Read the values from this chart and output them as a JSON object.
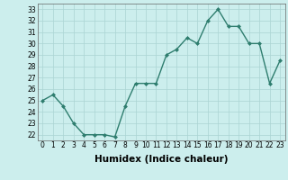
{
  "xlabel": "Humidex (Indice chaleur)",
  "x": [
    0,
    1,
    2,
    3,
    4,
    5,
    6,
    7,
    8,
    9,
    10,
    11,
    12,
    13,
    14,
    15,
    16,
    17,
    18,
    19,
    20,
    21,
    22,
    23
  ],
  "y": [
    25.0,
    25.5,
    24.5,
    23.0,
    22.0,
    22.0,
    22.0,
    21.8,
    24.5,
    26.5,
    26.5,
    26.5,
    29.0,
    29.5,
    30.5,
    30.0,
    32.0,
    33.0,
    31.5,
    31.5,
    30.0,
    30.0,
    26.5,
    28.5
  ],
  "line_color": "#2e7d6e",
  "marker": "D",
  "marker_size": 2.0,
  "background_color": "#cceeed",
  "grid_color": "#aad4d3",
  "ylim_min": 21.5,
  "ylim_max": 33.5,
  "xlim_min": -0.5,
  "xlim_max": 23.5,
  "yticks": [
    22,
    23,
    24,
    25,
    26,
    27,
    28,
    29,
    30,
    31,
    32,
    33
  ],
  "xticks": [
    0,
    1,
    2,
    3,
    4,
    5,
    6,
    7,
    8,
    9,
    10,
    11,
    12,
    13,
    14,
    15,
    16,
    17,
    18,
    19,
    20,
    21,
    22,
    23
  ],
  "xlabel_fontsize": 7.5,
  "tick_fontsize": 5.5,
  "linewidth": 1.0
}
